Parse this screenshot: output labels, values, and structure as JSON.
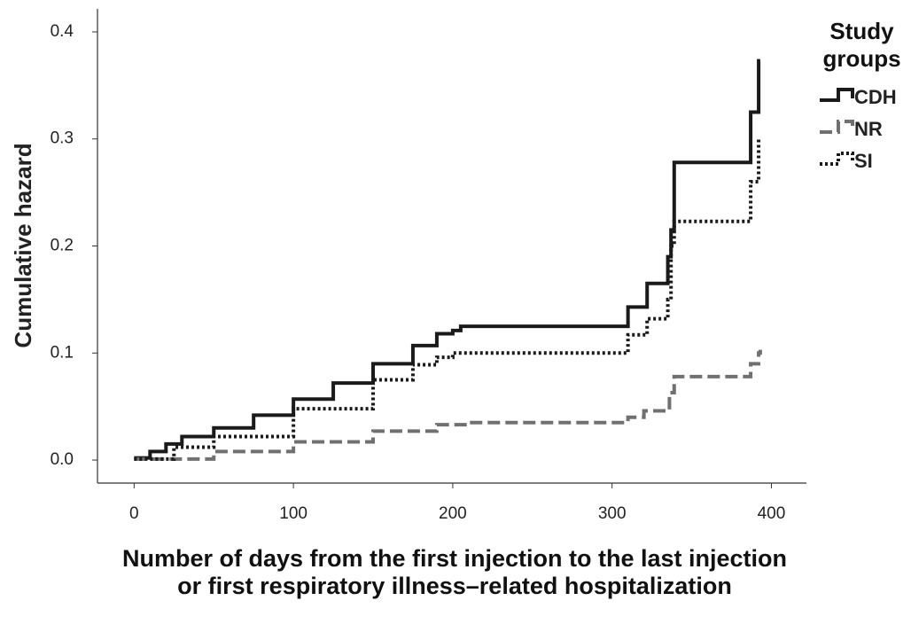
{
  "chart_data": {
    "type": "step",
    "x_label": "Number of days from the first injection to the last injection or first respiratory illness–related hospitalization",
    "y_label": "Cumulative hazard",
    "legend_title": "Study groups",
    "legend": "right",
    "grid": false,
    "xlim": [
      -23,
      422
    ],
    "ylim": [
      -0.0215,
      0.4215
    ],
    "xticks": [
      0,
      100,
      200,
      300,
      400
    ],
    "yticks": [
      {
        "value": 0,
        "label": "0.0"
      },
      0.1,
      0.2,
      0.3,
      0.4
    ],
    "series": [
      {
        "name": "CDH",
        "color": "#1a1a1a",
        "dash": "solid",
        "x": [
          0,
          10,
          20,
          30,
          50,
          75,
          100,
          125,
          150,
          175,
          190,
          200,
          205,
          310,
          322,
          335,
          337,
          339,
          387,
          392,
          393
        ],
        "values": [
          0.002,
          0.008,
          0.015,
          0.022,
          0.03,
          0.042,
          0.057,
          0.072,
          0.09,
          0.107,
          0.118,
          0.121,
          0.125,
          0.143,
          0.165,
          0.19,
          0.215,
          0.278,
          0.325,
          0.373,
          0.373
        ]
      },
      {
        "name": "NR",
        "color": "#707070",
        "dash": "dashed",
        "x": [
          0,
          50,
          100,
          150,
          190,
          210,
          310,
          320,
          336,
          339,
          387,
          392,
          393
        ],
        "values": [
          0.001,
          0.008,
          0.017,
          0.027,
          0.033,
          0.035,
          0.04,
          0.046,
          0.063,
          0.078,
          0.09,
          0.1,
          0.103
        ]
      },
      {
        "name": "SI",
        "color": "#1a1a1a",
        "dash": "dotted",
        "x": [
          0,
          25,
          50,
          100,
          150,
          175,
          190,
          200,
          310,
          322,
          335,
          337,
          339,
          387,
          392,
          393
        ],
        "values": [
          0.001,
          0.012,
          0.022,
          0.048,
          0.075,
          0.089,
          0.096,
          0.1,
          0.117,
          0.132,
          0.15,
          0.2,
          0.223,
          0.26,
          0.3,
          0.3
        ]
      }
    ]
  }
}
